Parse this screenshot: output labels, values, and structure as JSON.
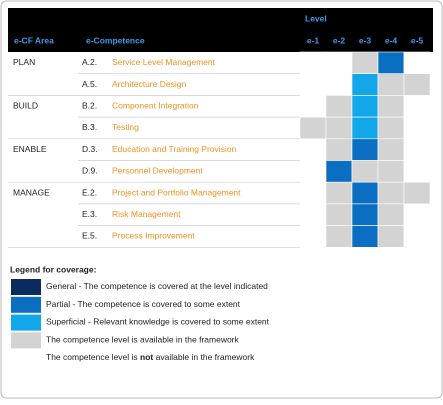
{
  "header": {
    "level": "Level",
    "area": "e-CF Area",
    "competence": "e-Competence",
    "levels": [
      "e-1",
      "e-2",
      "e-3",
      "e-4",
      "e-5"
    ]
  },
  "groups": [
    {
      "area": "PLAN",
      "competences": [
        {
          "code": "A.2.",
          "name": "Service Level Management",
          "levels": [
            4,
            4,
            3,
            1,
            4
          ]
        },
        {
          "code": "A.5.",
          "name": "Architecture Design",
          "levels": [
            4,
            4,
            2,
            3,
            3
          ]
        }
      ]
    },
    {
      "area": "BUILD",
      "competences": [
        {
          "code": "B.2.",
          "name": "Component Integration",
          "levels": [
            4,
            3,
            2,
            3,
            4
          ]
        },
        {
          "code": "B.3.",
          "name": "Testing",
          "levels": [
            3,
            3,
            2,
            3,
            4
          ]
        }
      ]
    },
    {
      "area": "ENABLE",
      "competences": [
        {
          "code": "D.3.",
          "name": "Education and Training Provision",
          "levels": [
            4,
            3,
            1,
            3,
            4
          ]
        },
        {
          "code": "D.9.",
          "name": "Personnel Development",
          "levels": [
            4,
            1,
            3,
            3,
            4
          ]
        }
      ]
    },
    {
      "area": "MANAGE",
      "competences": [
        {
          "code": "E.2.",
          "name": "Project and Portfolio Management",
          "levels": [
            4,
            3,
            1,
            3,
            3
          ]
        },
        {
          "code": "E.3.",
          "name": "Risk Management",
          "levels": [
            4,
            3,
            1,
            3,
            4
          ]
        },
        {
          "code": "E.5.",
          "name": "Process Improvement",
          "levels": [
            4,
            3,
            1,
            3,
            4
          ]
        }
      ]
    }
  ],
  "legend": {
    "title": "Legend for coverage:",
    "items": [
      {
        "color": "#0b2a5e",
        "parts": [
          "General - The competence is covered at the level indicated"
        ]
      },
      {
        "color": "#0a6fc2",
        "parts": [
          "Partial - The competence is covered to some extent"
        ]
      },
      {
        "color": "#12a7e8",
        "parts": [
          "Superficial - Relevant knowledge is covered to some extent"
        ]
      },
      {
        "color": "#d3d3d3",
        "parts": [
          "The competence level is available in the framework"
        ]
      },
      {
        "color": "#ffffff",
        "parts": [
          "The competence level is ",
          "not",
          " available in the framework"
        ]
      }
    ]
  }
}
